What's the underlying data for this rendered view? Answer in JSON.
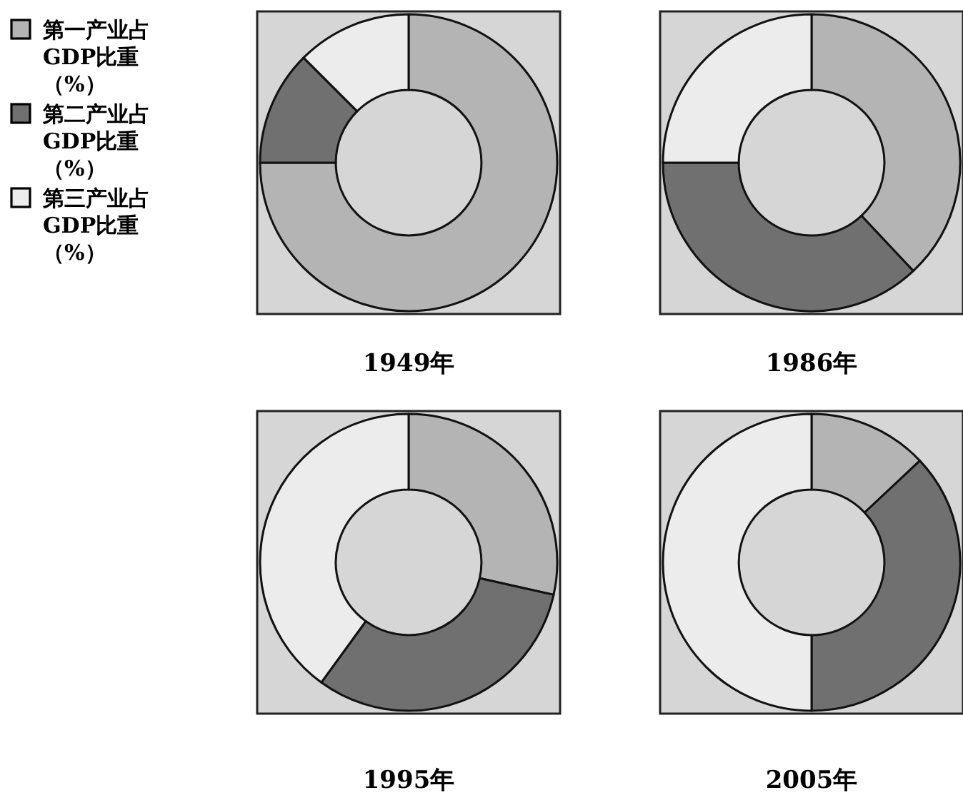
{
  "chart_data": [
    {
      "type": "donut",
      "title": "1949年",
      "categories": [
        "第一产业占GDP比重（%）",
        "第二产业占GDP比重（%）",
        "第三产业占GDP比重（%）"
      ],
      "values": [
        75,
        12.5,
        12.5
      ],
      "colors": [
        "#b4b4b4",
        "#707070",
        "#ececec"
      ],
      "legend": "left"
    },
    {
      "type": "donut",
      "title": "1986年",
      "categories": [
        null,
        null,
        null
      ],
      "values": [
        38,
        37,
        25
      ],
      "colors": [
        "#b4b4b4",
        "#707070",
        "#ececec"
      ]
    },
    {
      "type": "donut",
      "title": "1995年",
      "categories": [
        null,
        null,
        null
      ],
      "values": [
        28.5,
        31.5,
        40
      ],
      "colors": [
        "#b4b4b4",
        "#707070",
        "#ececec"
      ]
    },
    {
      "type": "donut",
      "title": "2005年",
      "categories": [
        null,
        null,
        null
      ],
      "values": [
        13,
        37,
        50
      ],
      "colors": [
        "#b4b4b4",
        "#707070",
        "#ececec"
      ]
    }
  ]
}
